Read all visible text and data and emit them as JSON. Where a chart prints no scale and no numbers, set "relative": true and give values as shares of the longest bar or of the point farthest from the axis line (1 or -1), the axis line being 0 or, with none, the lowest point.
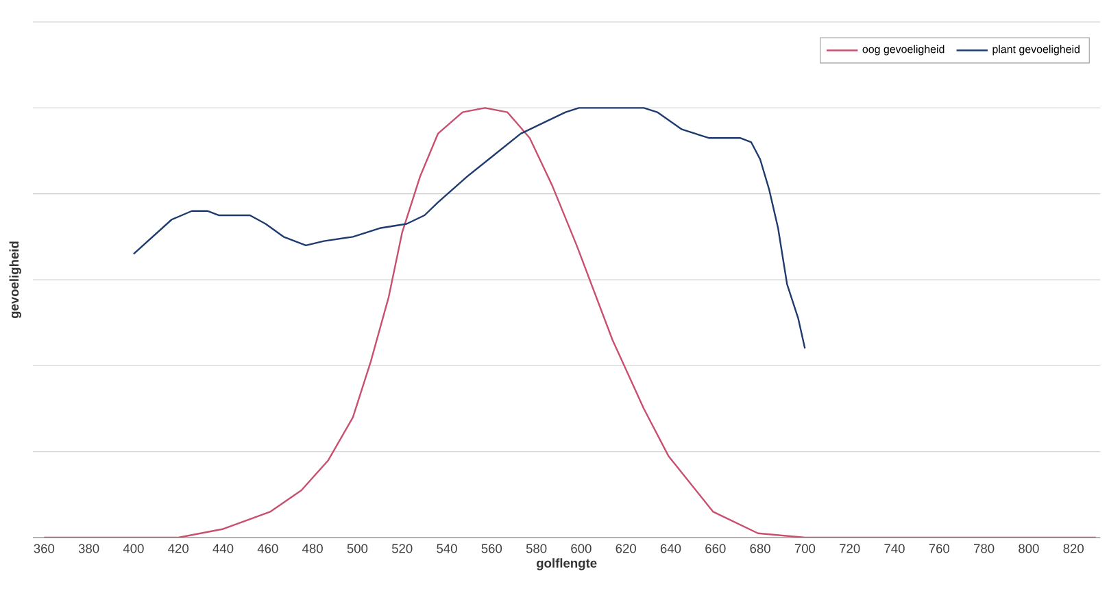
{
  "chart_data": {
    "type": "line",
    "xlabel": "golflengte",
    "ylabel": "gevoeligheid",
    "relative": true,
    "xlim": [
      355,
      832
    ],
    "xticks": [
      360,
      380,
      400,
      420,
      440,
      460,
      480,
      500,
      520,
      540,
      560,
      580,
      600,
      620,
      640,
      660,
      680,
      700,
      720,
      740,
      760,
      780,
      800,
      820
    ],
    "grid": "y",
    "legend": "top right",
    "series": [
      {
        "name": "oog gevoeligheid",
        "color": "#c8506e",
        "x": [
          360,
          389,
          420,
          440,
          461,
          475,
          487,
          498,
          506,
          514,
          520,
          528,
          536,
          547,
          557,
          567,
          577,
          587,
          598,
          614,
          628,
          639,
          659,
          679,
          700,
          830
        ],
        "values": [
          0,
          0,
          0,
          0.02,
          0.06,
          0.11,
          0.18,
          0.28,
          0.41,
          0.56,
          0.71,
          0.84,
          0.94,
          0.99,
          1.0,
          0.99,
          0.93,
          0.82,
          0.68,
          0.46,
          0.3,
          0.19,
          0.06,
          0.01,
          0,
          0
        ]
      },
      {
        "name": "plant gevoeligheid",
        "color": "#1f3b6e",
        "x": [
          400,
          417,
          426,
          433,
          438,
          452,
          459,
          467,
          477,
          485,
          498,
          510,
          522,
          530,
          536,
          549,
          561,
          573,
          585,
          593,
          599,
          628,
          634,
          645,
          657,
          671,
          676,
          680,
          684,
          688,
          692,
          697,
          700
        ],
        "values": [
          0.66,
          0.74,
          0.76,
          0.76,
          0.75,
          0.75,
          0.73,
          0.7,
          0.68,
          0.69,
          0.7,
          0.72,
          0.73,
          0.75,
          0.78,
          0.84,
          0.89,
          0.94,
          0.97,
          0.99,
          1.0,
          1.0,
          0.99,
          0.95,
          0.93,
          0.93,
          0.92,
          0.88,
          0.81,
          0.72,
          0.59,
          0.51,
          0.44
        ]
      }
    ]
  }
}
